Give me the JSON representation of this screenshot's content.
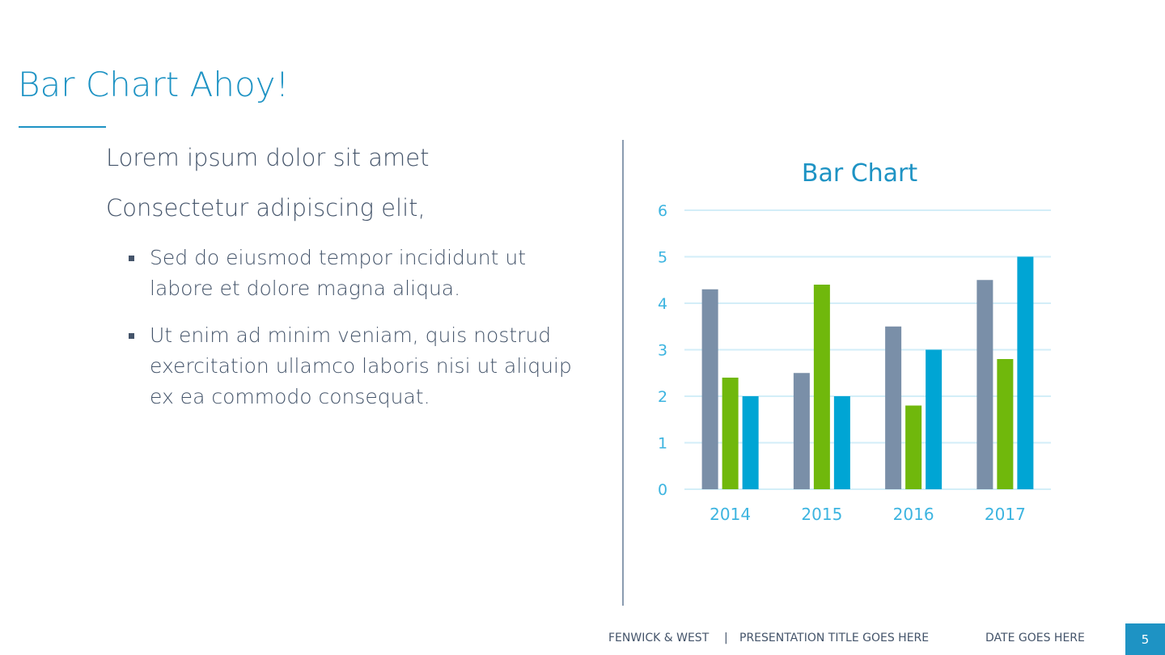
{
  "slide": {
    "title": "Bar Chart Ahoy!",
    "paragraphs": [
      "Lorem ipsum dolor sit amet",
      "Consectetur adipiscing elit,"
    ],
    "bullets": [
      [
        "Sed do eiusmod tempor incididunt ut",
        "labore et dolore magna aliqua."
      ],
      [
        "Ut enim ad minim veniam, quis nostrud",
        "exercitation ullamco laboris nisi ut aliquip",
        "ex ea commodo consequat."
      ]
    ]
  },
  "footer": {
    "company": "FENWICK & WEST",
    "separator": "|",
    "presentation_title": "PRESENTATION TITLE GOES HERE",
    "date": "DATE GOES HERE",
    "page_number": "5"
  },
  "chart_data": {
    "type": "bar",
    "title": "Bar Chart",
    "xlabel": "",
    "ylabel": "",
    "categories": [
      "2014",
      "2015",
      "2016",
      "2017"
    ],
    "series": [
      {
        "values": [
          4.3,
          2.5,
          3.5,
          4.5
        ],
        "color": "#7a8fa8"
      },
      {
        "values": [
          2.4,
          4.4,
          1.8,
          2.8
        ],
        "color": "#70b80c"
      },
      {
        "values": [
          2.0,
          2.0,
          3.0,
          5.0
        ],
        "color": "#00a5d4"
      }
    ],
    "ylim": [
      0,
      6
    ],
    "yticks": [
      0,
      1,
      2,
      3,
      4,
      5,
      6
    ],
    "grid": true,
    "legend": "none",
    "colors": {
      "title": "#1e93c4",
      "axis_labels": "#3cb4e0",
      "grid": "#d3eef8"
    }
  }
}
